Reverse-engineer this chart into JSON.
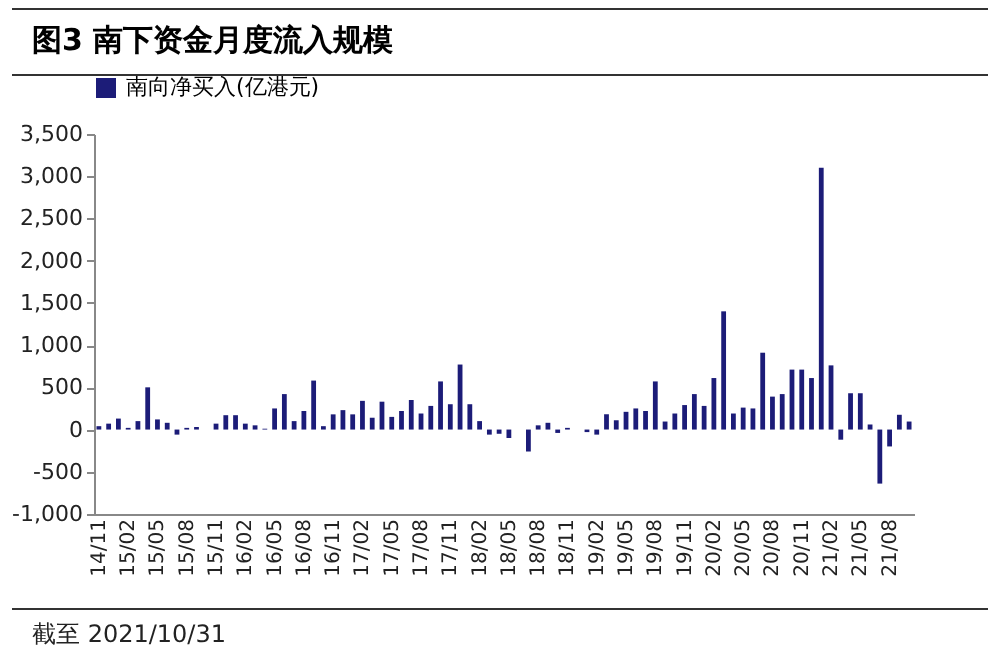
{
  "chart_data": {
    "type": "bar",
    "title": "图3  南下资金月度流入规模",
    "annotations": [
      "截至 2021/10/31"
    ],
    "categories": [
      "14/11",
      null,
      null,
      "15/02",
      null,
      null,
      "15/05",
      null,
      null,
      "15/08",
      null,
      null,
      "15/11",
      null,
      null,
      "16/02",
      null,
      null,
      "16/05",
      null,
      null,
      "16/08",
      null,
      null,
      "16/11",
      null,
      null,
      "17/02",
      null,
      null,
      "17/05",
      null,
      null,
      "17/08",
      null,
      null,
      "17/11",
      null,
      null,
      "18/02",
      null,
      null,
      "18/05",
      null,
      null,
      "18/08",
      null,
      null,
      "18/11",
      null,
      null,
      "19/02",
      null,
      null,
      "19/05",
      null,
      null,
      "19/08",
      null,
      null,
      "19/11",
      null,
      null,
      "20/02",
      null,
      null,
      "20/05",
      null,
      null,
      "20/08",
      null,
      null,
      "20/11",
      null,
      null,
      "21/02",
      null,
      null,
      "21/05",
      null,
      null,
      "21/08",
      null,
      null
    ],
    "series": [
      {
        "name": "南向净买入(亿港元)",
        "color": "#1c1c78",
        "values": [
          40,
          70,
          130,
          20,
          100,
          500,
          120,
          80,
          -60,
          20,
          30,
          0,
          70,
          170,
          170,
          70,
          50,
          10,
          250,
          420,
          100,
          220,
          580,
          40,
          180,
          230,
          180,
          340,
          140,
          330,
          150,
          220,
          350,
          190,
          280,
          570,
          300,
          770,
          300,
          100,
          -60,
          -50,
          -100,
          0,
          -260,
          50,
          80,
          -40,
          20,
          0,
          -30,
          -60,
          180,
          110,
          210,
          250,
          220,
          570,
          95,
          190,
          290,
          420,
          280,
          610,
          1400,
          190,
          260,
          250,
          910,
          390,
          420,
          710,
          710,
          610,
          3100,
          760,
          -120,
          430,
          430,
          60,
          -640,
          -200,
          175,
          95
        ]
      }
    ],
    "ylim": [
      -1000,
      3500
    ],
    "yticks": [
      {
        "value": -1000,
        "label": "-1,000"
      },
      -500,
      0,
      500,
      {
        "value": 1000,
        "label": "1,000"
      },
      {
        "value": 1500,
        "label": "1,500"
      },
      {
        "value": 2000,
        "label": "2,000"
      },
      {
        "value": 2500,
        "label": "2,500"
      },
      {
        "value": 3000,
        "label": "3,000"
      },
      {
        "value": 3500,
        "label": "3,500"
      }
    ],
    "grid": false,
    "legend": "top"
  }
}
